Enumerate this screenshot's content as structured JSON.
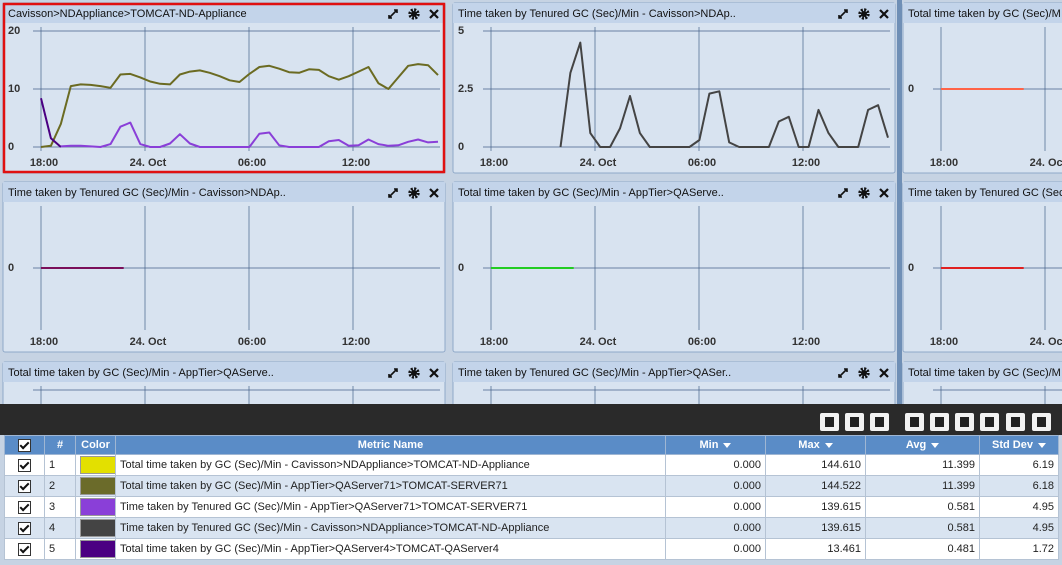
{
  "panels": [
    {
      "title": "Cavisson>NDAppliance>TOMCAT-ND-Appliance",
      "type": "line",
      "ylim": [
        0,
        20
      ],
      "yticks": [
        0,
        10,
        20
      ],
      "xticks": [
        "18:00",
        "24. Oct",
        "06:00",
        "12:00"
      ],
      "series": [
        {
          "color": "#6b6b22",
          "values": [
            0,
            0.2,
            4,
            10.5,
            10.8,
            10.7,
            10.5,
            10.2,
            12.5,
            12.6,
            12,
            11.3,
            10.9,
            10.8,
            12.5,
            13,
            13.2,
            12.8,
            12.2,
            11.5,
            11.2,
            12.6,
            13.8,
            14,
            13.5,
            12.9,
            12.8,
            13.4,
            13.3,
            12.2,
            11.6,
            12.2,
            13,
            13.8,
            11,
            10,
            12,
            14,
            14.3,
            14.1,
            12.4
          ]
        },
        {
          "color": "#4b0082",
          "values": [
            8.4,
            1.5,
            0,
            null,
            null,
            null,
            null,
            null,
            null,
            null,
            null,
            null,
            null,
            null,
            null,
            null,
            null,
            null,
            null,
            null,
            null,
            null,
            null,
            null,
            null,
            null,
            null,
            null,
            null,
            null,
            null,
            null,
            null,
            null,
            null,
            null,
            null,
            null,
            null,
            null,
            null
          ]
        },
        {
          "color": "#8a3fd8",
          "values": [
            null,
            null,
            0.1,
            0.2,
            0.2,
            0.1,
            0,
            0.5,
            3.5,
            4.2,
            0.5,
            0,
            0,
            0.6,
            2.2,
            0.6,
            0,
            0,
            0,
            0,
            0,
            0,
            2.3,
            2.5,
            0.3,
            0,
            0,
            0,
            0,
            1,
            1.2,
            0.2,
            0.3,
            1.3,
            0.5,
            0.2,
            0.3,
            0.9,
            1.3,
            0.8,
            0.9
          ]
        }
      ]
    },
    {
      "title": "Time taken by Tenured GC (Sec)/Min - Cavisson>NDAp..",
      "type": "line",
      "ylim": [
        0,
        5
      ],
      "yticks": [
        0,
        2.5,
        5
      ],
      "xticks": [
        "18:00",
        "24. Oct",
        "06:00",
        "12:00"
      ],
      "series": [
        {
          "color": "#444444",
          "values": [
            null,
            null,
            null,
            null,
            null,
            null,
            null,
            0,
            3.2,
            4.5,
            0.6,
            0,
            0,
            0.8,
            2.2,
            0.6,
            0,
            0,
            0,
            0,
            0,
            0.3,
            2.3,
            2.4,
            0.2,
            0,
            0,
            0,
            0,
            1.1,
            1.3,
            0,
            0,
            1.6,
            0.6,
            0,
            0,
            0,
            1.6,
            1.8,
            0.4
          ]
        }
      ]
    },
    {
      "title": "Total time taken by GC (Sec)/M",
      "type": "line",
      "ylim": [
        -1,
        1
      ],
      "yticks": [
        0
      ],
      "xticks": [
        "18:00",
        "24. Oct"
      ],
      "series": [
        {
          "color": "#ff6347",
          "values": [
            0,
            0,
            0,
            0,
            0,
            0,
            null,
            null,
            null,
            null,
            null,
            null,
            null,
            null,
            null,
            null,
            null,
            null,
            null,
            null,
            null,
            null,
            null,
            null,
            null
          ]
        }
      ]
    },
    {
      "title": "Time taken by Tenured GC (Sec)/Min - Cavisson>NDAp..",
      "type": "line",
      "ylim": [
        -1,
        1
      ],
      "yticks": [
        0
      ],
      "xticks": [
        "18:00",
        "24. Oct",
        "06:00",
        "12:00"
      ],
      "series": [
        {
          "color": "#7a0f5a",
          "values": [
            0,
            0,
            0,
            0,
            0,
            0,
            null,
            null,
            null,
            null,
            null,
            null,
            null,
            null,
            null,
            null,
            null,
            null,
            null,
            null,
            null,
            null,
            null,
            null,
            null
          ]
        }
      ]
    },
    {
      "title": "Total time taken by GC (Sec)/Min - AppTier>QAServe..",
      "type": "line",
      "ylim": [
        -1,
        1
      ],
      "yticks": [
        0
      ],
      "xticks": [
        "18:00",
        "24. Oct",
        "06:00",
        "12:00"
      ],
      "series": [
        {
          "color": "#22cc22",
          "values": [
            0,
            0,
            0,
            0,
            0,
            0,
            null,
            null,
            null,
            null,
            null,
            null,
            null,
            null,
            null,
            null,
            null,
            null,
            null,
            null,
            null,
            null,
            null,
            null,
            null
          ]
        }
      ]
    },
    {
      "title": "Time taken by Tenured GC (Sec)/Mi",
      "type": "line",
      "ylim": [
        -1,
        1
      ],
      "yticks": [
        0
      ],
      "xticks": [
        "18:00",
        "24. Oct"
      ],
      "series": [
        {
          "color": "#e02020",
          "values": [
            0,
            0,
            0,
            0,
            0,
            0,
            null,
            null,
            null,
            null,
            null,
            null,
            null,
            null,
            null,
            null,
            null,
            null,
            null,
            null,
            null,
            null,
            null,
            null,
            null
          ]
        }
      ]
    },
    {
      "title": "Total time taken by GC (Sec)/Min - AppTier>QAServe.."
    },
    {
      "title": "Time taken by Tenured GC (Sec)/Min - AppTier>QASer.."
    },
    {
      "title": "Total time taken by GC (Sec)/M"
    }
  ],
  "table": {
    "columns": [
      "#",
      "Color",
      "Metric Name",
      "Min",
      "Max",
      "Avg",
      "Std Dev"
    ],
    "rows": [
      [
        1,
        "#e3e000",
        "Total time taken by GC (Sec)/Min - Cavisson>NDAppliance>TOMCAT-ND-Appliance",
        "0.000",
        "144.610",
        "11.399",
        "6.19"
      ],
      [
        2,
        "#6b6b2a",
        "Total time taken by GC (Sec)/Min - AppTier>QAServer71>TOMCAT-SERVER71",
        "0.000",
        "144.522",
        "11.399",
        "6.18"
      ],
      [
        3,
        "#8a3fd8",
        "Time taken by Tenured GC (Sec)/Min - AppTier>QAServer71>TOMCAT-SERVER71",
        "0.000",
        "139.615",
        "0.581",
        "4.95"
      ],
      [
        4,
        "#444444",
        "Time taken by Tenured GC (Sec)/Min - Cavisson>NDAppliance>TOMCAT-ND-Appliance",
        "0.000",
        "139.615",
        "0.581",
        "4.95"
      ],
      [
        5,
        "#4b0082",
        "Total time taken by GC (Sec)/Min - AppTier>QAServer4>TOMCAT-QAServer4",
        "0.000",
        "13.461",
        "0.481",
        "1.72"
      ]
    ]
  }
}
